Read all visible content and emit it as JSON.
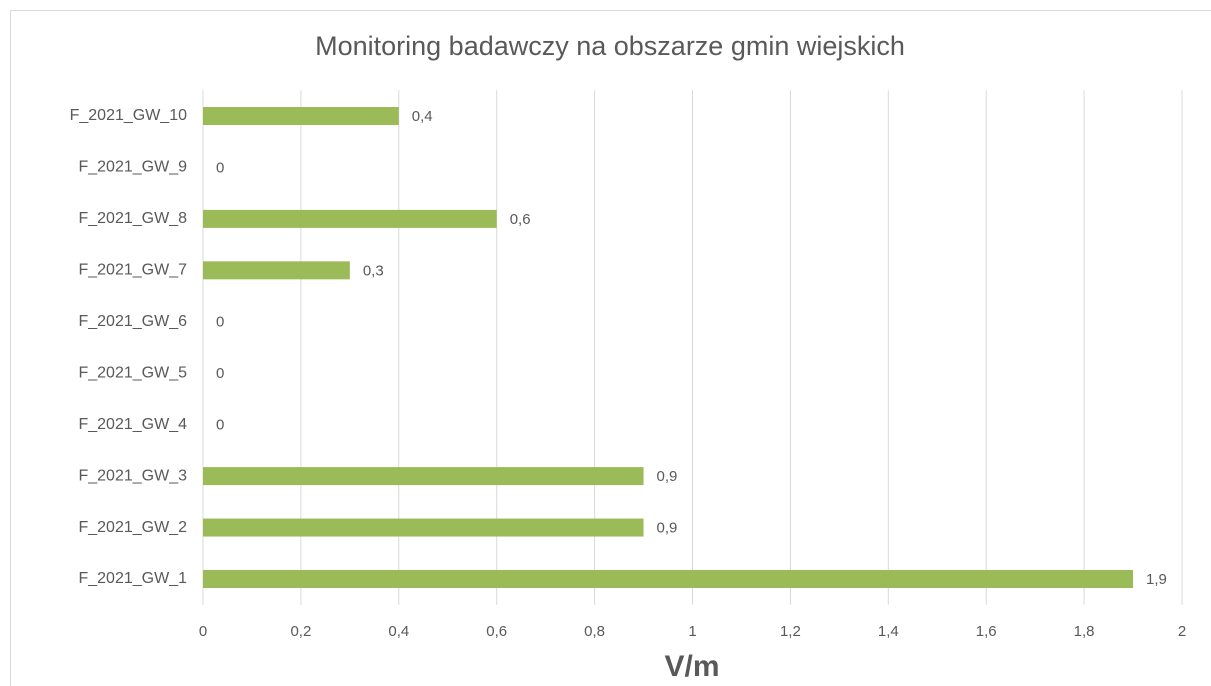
{
  "chart_data": {
    "type": "barh",
    "title": "Monitoring badawczy na obszarze gmin wiejskich",
    "x_label": "V/m",
    "categories": [
      "F_2021_GW_10",
      "F_2021_GW_9",
      "F_2021_GW_8",
      "F_2021_GW_7",
      "F_2021_GW_6",
      "F_2021_GW_5",
      "F_2021_GW_4",
      "F_2021_GW_3",
      "F_2021_GW_2",
      "F_2021_GW_1"
    ],
    "values": [
      0.4,
      0,
      0.6,
      0.3,
      0,
      0,
      0,
      0.9,
      0.9,
      1.9
    ],
    "value_labels": [
      "0,4",
      "0",
      "0,6",
      "0,3",
      "0",
      "0",
      "0",
      "0,9",
      "0,9",
      "1,9"
    ],
    "color": "#9bbb59",
    "xlim": [
      0,
      2
    ],
    "xticks": [
      0,
      {
        "value": 0.2,
        "label": "0,2"
      },
      {
        "value": 0.4,
        "label": "0,4"
      },
      {
        "value": 0.6,
        "label": "0,6"
      },
      {
        "value": 0.8,
        "label": "0,8"
      },
      1,
      {
        "value": 1.2,
        "label": "1,2"
      },
      {
        "value": 1.4,
        "label": "1,4"
      },
      {
        "value": 1.6,
        "label": "1,6"
      },
      {
        "value": 1.8,
        "label": "1,8"
      },
      2
    ],
    "grid": true
  }
}
